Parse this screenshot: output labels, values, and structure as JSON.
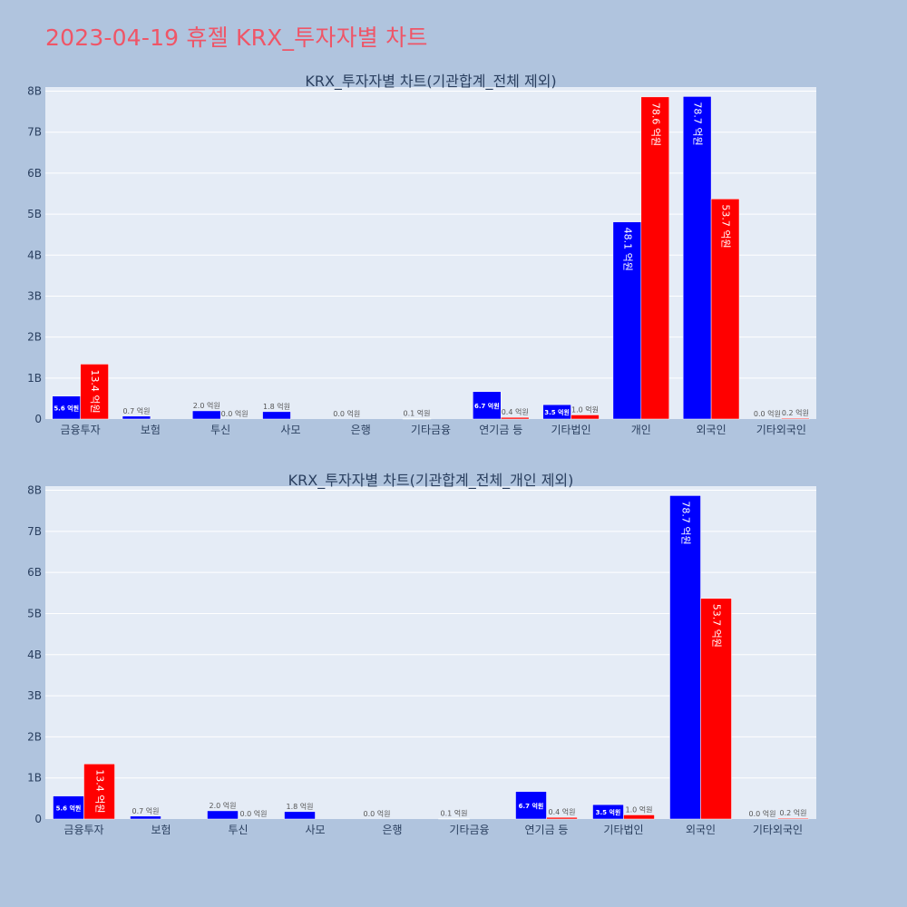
{
  "page_title": "2023-04-19 휴젤 KRX_투자자별 차트",
  "colors": {
    "buy": "#0000ff",
    "sell": "#ff0000",
    "plot_bg": "#e5ecf6",
    "page_bg": "#b0c4de",
    "title": "#ef5567"
  },
  "chart_data": [
    {
      "type": "bar",
      "title": "KRX_투자자별 차트(기관합계_전체 제외)",
      "categories": [
        "금융투자",
        "보험",
        "투신",
        "사모",
        "은행",
        "기타금융",
        "연기금 등",
        "기타법인",
        "개인",
        "외국인",
        "기타외국인"
      ],
      "series": [
        {
          "values": [
            0.56,
            0.07,
            0.2,
            0.18,
            0.0,
            0.01,
            0.67,
            0.35,
            4.81,
            7.87,
            0.0
          ],
          "labels": [
            "5.6 억원",
            "0.7 억원",
            "2.0 억원",
            "1.8 억원",
            "0.0 억원",
            "0.1 억원",
            "6.7 억원",
            "3.5 억원",
            "48.1 억원",
            "78.7 억원",
            "0.0 억원"
          ]
        },
        {
          "values": [
            1.34,
            0.0,
            0.0,
            0.0,
            0.0,
            0.0,
            0.04,
            0.1,
            7.86,
            5.37,
            0.02
          ],
          "labels": [
            "13.4 억원",
            "",
            "0.0 억원",
            "",
            "",
            "",
            "0.4 억원",
            "1.0 억원",
            "78.6 억원",
            "53.7 억원",
            "0.2 억원"
          ]
        }
      ],
      "yticks": [
        "0",
        "1B",
        "2B",
        "3B",
        "4B",
        "5B",
        "6B",
        "7B",
        "8B"
      ],
      "ylim": [
        0,
        8.1
      ]
    },
    {
      "type": "bar",
      "title": "KRX_투자자별 차트(기관합계_전체_개인 제외)",
      "categories": [
        "금융투자",
        "보험",
        "투신",
        "사모",
        "은행",
        "기타금융",
        "연기금 등",
        "기타법인",
        "외국인",
        "기타외국인"
      ],
      "series": [
        {
          "values": [
            0.56,
            0.07,
            0.2,
            0.18,
            0.0,
            0.01,
            0.67,
            0.35,
            7.87,
            0.0
          ],
          "labels": [
            "5.6 억원",
            "0.7 억원",
            "2.0 억원",
            "1.8 억원",
            "0.0 억원",
            "0.1 억원",
            "6.7 억원",
            "3.5 억원",
            "78.7 억원",
            "0.0 억원"
          ]
        },
        {
          "values": [
            1.34,
            0.0,
            0.0,
            0.0,
            0.0,
            0.0,
            0.04,
            0.1,
            5.37,
            0.02
          ],
          "labels": [
            "13.4 억원",
            "",
            "0.0 억원",
            "",
            "",
            "",
            "0.4 억원",
            "1.0 억원",
            "53.7 억원",
            "0.2 억원"
          ]
        }
      ],
      "yticks": [
        "0",
        "1B",
        "2B",
        "3B",
        "4B",
        "5B",
        "6B",
        "7B",
        "8B"
      ],
      "ylim": [
        0,
        8.1
      ]
    }
  ]
}
